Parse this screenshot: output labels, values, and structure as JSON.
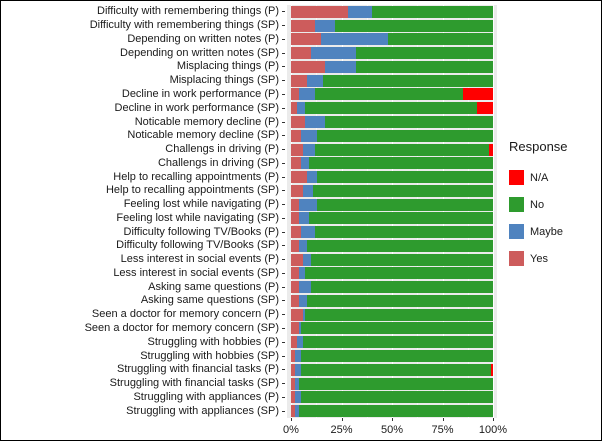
{
  "chart_data": {
    "type": "bar",
    "orientation": "horizontal",
    "stacked": true,
    "title": "",
    "xlabel": "",
    "ylabel": "",
    "panel_background": "#EBEBEB",
    "grid_color": "#FFFFFF",
    "x_axis": {
      "range": [
        0,
        100
      ],
      "tick_values": [
        0,
        25,
        50,
        75,
        100
      ],
      "tick_labels": [
        "0%",
        "25%",
        "50%",
        "75%",
        "100%"
      ],
      "minor_tick_values": [
        12.5,
        37.5,
        62.5,
        87.5
      ]
    },
    "categories": [
      "Difficulty with remembering things (P)",
      "Difficulty with remembering things (SP)",
      "Depending on written notes (P)",
      "Depending on written notes (SP)",
      "Misplacing things (P)",
      "Misplacing things (SP)",
      "Decline in work performance (P)",
      "Decline in work performance (SP)",
      "Noticable memory decline (P)",
      "Noticable memory decline (SP)",
      "Challengs in driving (P)",
      "Challengs in driving (SP)",
      "Help to recalling appointments (P)",
      "Help to recalling appointments (SP)",
      "Feeling lost while navigating (P)",
      "Feeling lost while navigating (SP)",
      "Difficulty following TV/Books (P)",
      "Difficulty following TV/Books (SP)",
      "Less interest in social events (P)",
      "Less interest in social events (SP)",
      "Asking same questions (P)",
      "Asking same questions (SP)",
      "Seen a doctor for memory concern (P)",
      "Seen a doctor for memory concern (SP)",
      "Struggling with hobbies (P)",
      "Struggling with hobbies (SP)",
      "Struggling with financial tasks (P)",
      "Struggling with financial tasks (SP)",
      "Struggling with appliances (P)",
      "Struggling with appliances (SP)"
    ],
    "stack_order": [
      "Yes",
      "Maybe",
      "No",
      "N/A"
    ],
    "series": [
      {
        "name": "Yes",
        "color": "#CD5C5C",
        "values": [
          28,
          12,
          15,
          10,
          17,
          8,
          4,
          3,
          7,
          5,
          6,
          5,
          8,
          6,
          4,
          4,
          5,
          4,
          6,
          4,
          4,
          4,
          6,
          4,
          3,
          2,
          2,
          2,
          2,
          2
        ]
      },
      {
        "name": "Maybe",
        "color": "#4F83BF",
        "values": [
          12,
          10,
          33,
          22,
          15,
          8,
          8,
          4,
          10,
          8,
          6,
          4,
          5,
          5,
          9,
          5,
          7,
          4,
          4,
          3,
          6,
          4,
          1,
          1,
          3,
          3,
          3,
          2,
          3,
          2
        ]
      },
      {
        "name": "No",
        "color": "#2E9B2E",
        "values": [
          60,
          78,
          52,
          68,
          68,
          84,
          73,
          85,
          83,
          87,
          86,
          91,
          87,
          89,
          87,
          91,
          88,
          92,
          90,
          93,
          90,
          92,
          93,
          95,
          94,
          95,
          94,
          96,
          95,
          96
        ]
      },
      {
        "name": "N/A",
        "color": "#FF0000",
        "values": [
          0,
          0,
          0,
          0,
          0,
          0,
          15,
          8,
          0,
          0,
          2,
          0,
          0,
          0,
          0,
          0,
          0,
          0,
          0,
          0,
          0,
          0,
          0,
          0,
          0,
          0,
          1,
          0,
          0,
          0
        ]
      }
    ],
    "legend": {
      "title": "Response",
      "position": "right",
      "entries": [
        "N/A",
        "No",
        "Maybe",
        "Yes"
      ]
    }
  }
}
